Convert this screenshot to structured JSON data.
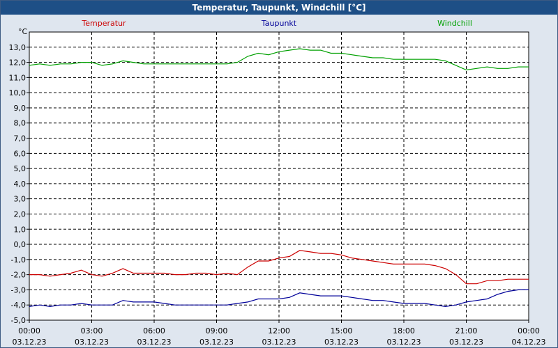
{
  "window": {
    "title": "Temperatur, Taupunkt, Windchill [°C]"
  },
  "chart_data": {
    "type": "line",
    "title": "Temperatur, Taupunkt, Windchill [°C]",
    "ylabel": "°C",
    "ylim": [
      -5.0,
      14.0
    ],
    "yticks": [
      "13,0",
      "12,0",
      "11,0",
      "10,0",
      "9,0",
      "8,0",
      "7,0",
      "6,0",
      "5,0",
      "4,0",
      "3,0",
      "2,0",
      "1,0",
      "0,0",
      "-1,0",
      "-2,0",
      "-3,0",
      "-4,0",
      "-5,0"
    ],
    "xticks": [
      {
        "time": "00:00",
        "date": "03.12.23"
      },
      {
        "time": "03:00",
        "date": "03.12.23"
      },
      {
        "time": "06:00",
        "date": "03.12.23"
      },
      {
        "time": "09:00",
        "date": "03.12.23"
      },
      {
        "time": "12:00",
        "date": "03.12.23"
      },
      {
        "time": "15:00",
        "date": "03.12.23"
      },
      {
        "time": "18:00",
        "date": "03.12.23"
      },
      {
        "time": "21:00",
        "date": "03.12.23"
      },
      {
        "time": "00:00",
        "date": "04.12.23"
      }
    ],
    "x": [
      "00:00",
      "00:30",
      "01:00",
      "01:30",
      "02:00",
      "02:30",
      "03:00",
      "03:30",
      "04:00",
      "04:30",
      "05:00",
      "05:30",
      "06:00",
      "06:30",
      "07:00",
      "07:30",
      "08:00",
      "08:30",
      "09:00",
      "09:30",
      "10:00",
      "10:30",
      "11:00",
      "11:30",
      "12:00",
      "12:30",
      "13:00",
      "13:30",
      "14:00",
      "14:30",
      "15:00",
      "15:30",
      "16:00",
      "16:30",
      "17:00",
      "17:30",
      "18:00",
      "18:30",
      "19:00",
      "19:30",
      "20:00",
      "20:30",
      "21:00",
      "21:30",
      "22:00",
      "22:30",
      "23:00",
      "23:30",
      "00:00"
    ],
    "grid": true,
    "legend": "top",
    "series": [
      {
        "name": "Temperatur",
        "color": "#cc0000",
        "values": [
          -2.0,
          -2.0,
          -2.1,
          -2.0,
          -1.9,
          -1.7,
          -2.0,
          -2.1,
          -1.9,
          -1.6,
          -1.9,
          -1.9,
          -1.9,
          -1.9,
          -2.0,
          -2.0,
          -1.9,
          -1.9,
          -2.0,
          -1.9,
          -2.0,
          -1.5,
          -1.1,
          -1.1,
          -0.9,
          -0.8,
          -0.4,
          -0.5,
          -0.6,
          -0.6,
          -0.7,
          -0.9,
          -1.0,
          -1.1,
          -1.2,
          -1.3,
          -1.3,
          -1.3,
          -1.3,
          -1.4,
          -1.6,
          -2.0,
          -2.6,
          -2.6,
          -2.4,
          -2.4,
          -2.3,
          -2.3,
          -2.3
        ]
      },
      {
        "name": "Taupunkt",
        "color": "#000099",
        "values": [
          -4.1,
          -4.0,
          -4.1,
          -4.0,
          -4.0,
          -3.9,
          -4.0,
          -4.0,
          -4.0,
          -3.7,
          -3.8,
          -3.8,
          -3.8,
          -3.9,
          -4.0,
          -4.0,
          -4.0,
          -4.0,
          -4.0,
          -4.0,
          -3.9,
          -3.8,
          -3.6,
          -3.6,
          -3.6,
          -3.5,
          -3.2,
          -3.3,
          -3.4,
          -3.4,
          -3.4,
          -3.5,
          -3.6,
          -3.7,
          -3.7,
          -3.8,
          -3.9,
          -3.9,
          -3.9,
          -4.0,
          -4.1,
          -4.0,
          -3.8,
          -3.7,
          -3.6,
          -3.3,
          -3.1,
          -3.0,
          -3.0
        ]
      },
      {
        "name": "Windchill",
        "color": "#00a000",
        "values": [
          11.8,
          11.9,
          11.8,
          11.9,
          11.9,
          12.0,
          12.0,
          11.8,
          11.9,
          12.1,
          12.0,
          11.9,
          11.9,
          11.9,
          11.9,
          11.9,
          11.9,
          11.9,
          11.9,
          11.9,
          12.0,
          12.4,
          12.6,
          12.5,
          12.7,
          12.8,
          12.9,
          12.8,
          12.8,
          12.6,
          12.6,
          12.5,
          12.4,
          12.3,
          12.3,
          12.2,
          12.2,
          12.2,
          12.2,
          12.2,
          12.1,
          11.8,
          11.5,
          11.6,
          11.7,
          11.6,
          11.6,
          11.7,
          11.7
        ]
      }
    ]
  }
}
